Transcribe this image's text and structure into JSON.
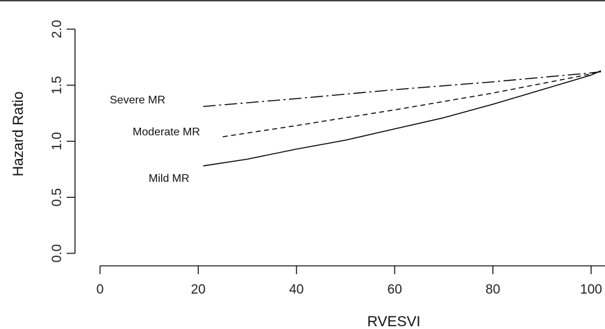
{
  "chart_data": {
    "type": "line",
    "title": "",
    "xlabel": "RVESVI",
    "ylabel": "Hazard Ratio",
    "xlim": [
      0,
      102
    ],
    "ylim": [
      0,
      2.0
    ],
    "x_ticks": [
      0,
      20,
      40,
      60,
      80,
      100
    ],
    "y_ticks": [
      0.0,
      0.5,
      1.0,
      1.5,
      2.0
    ],
    "x_tick_labels": [
      "0",
      "20",
      "40",
      "60",
      "80",
      "100"
    ],
    "y_tick_labels": [
      "0.0",
      "0.5",
      "1.0",
      "1.5",
      "2.0"
    ],
    "grid": false,
    "series": [
      {
        "name": "Severe MR",
        "dash": "18,5,3,5",
        "points": [
          [
            21,
            1.31
          ],
          [
            40,
            1.38
          ],
          [
            60,
            1.46
          ],
          [
            80,
            1.53
          ],
          [
            100,
            1.61
          ],
          [
            102,
            1.62
          ]
        ]
      },
      {
        "name": "Moderate MR",
        "dash": "7,5",
        "points": [
          [
            25,
            1.04
          ],
          [
            40,
            1.14
          ],
          [
            60,
            1.28
          ],
          [
            80,
            1.43
          ],
          [
            100,
            1.6
          ],
          [
            102,
            1.62
          ]
        ]
      },
      {
        "name": "Mild MR",
        "dash": "",
        "points": [
          [
            21,
            0.78
          ],
          [
            30,
            0.84
          ],
          [
            40,
            0.93
          ],
          [
            50,
            1.01
          ],
          [
            60,
            1.11
          ],
          [
            70,
            1.21
          ],
          [
            80,
            1.33
          ],
          [
            90,
            1.46
          ],
          [
            100,
            1.59
          ],
          [
            102,
            1.63
          ]
        ]
      }
    ]
  }
}
